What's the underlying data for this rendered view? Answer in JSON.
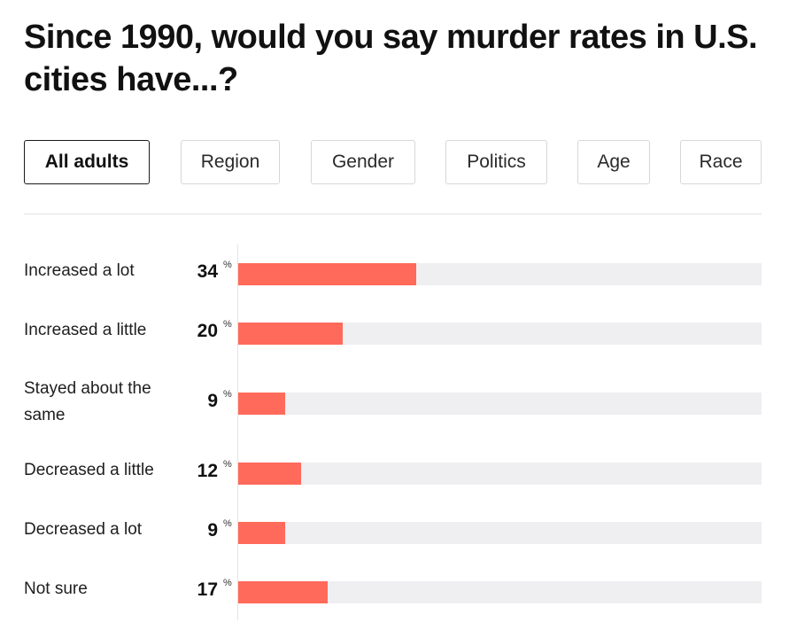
{
  "title": "Since 1990, would you say murder rates in U.S. cities have...?",
  "tabs": [
    {
      "label": "All adults",
      "active": true
    },
    {
      "label": "Region",
      "active": false
    },
    {
      "label": "Gender",
      "active": false
    },
    {
      "label": "Politics",
      "active": false
    },
    {
      "label": "Age",
      "active": false
    },
    {
      "label": "Race",
      "active": false
    }
  ],
  "colors": {
    "bar": "#ff6a5a",
    "track": "#efeff2"
  },
  "chart_data": {
    "type": "bar",
    "orientation": "horizontal",
    "unit": "%",
    "xlim": [
      0,
      100
    ],
    "categories": [
      "Increased a lot",
      "Increased a little",
      "Stayed about the same",
      "Decreased a little",
      "Decreased a lot",
      "Not sure"
    ],
    "values": [
      34,
      20,
      9,
      12,
      9,
      17
    ]
  }
}
